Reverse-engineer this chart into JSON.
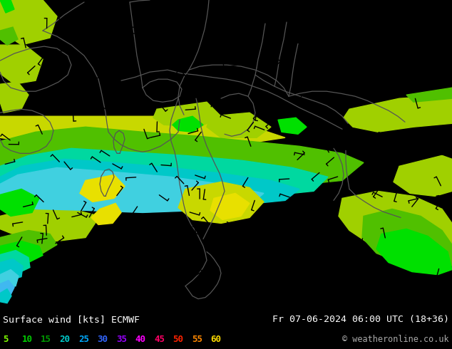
{
  "title_left": "Surface wind [kts] ECMWF",
  "title_right": "Fr 07-06-2024 06:00 UTC (18+36)",
  "copyright": "© weatheronline.co.uk",
  "legend_values": [
    5,
    10,
    15,
    20,
    25,
    30,
    35,
    40,
    45,
    50,
    55,
    60
  ],
  "legend_colors_actual": [
    "#80ff00",
    "#00dd00",
    "#00bb00",
    "#00dddd",
    "#00aaff",
    "#0066ff",
    "#cc00ff",
    "#ff00ff",
    "#ff0088",
    "#ff2200",
    "#ff6600",
    "#ffcc00"
  ],
  "map_colors": {
    "yellow": "#e8e000",
    "yellow_green": "#c8d800",
    "light_green": "#a0d000",
    "green": "#50c000",
    "bright_green": "#00e000",
    "dark_green": "#00aa00",
    "cyan_green": "#00d8a0",
    "cyan": "#00c8c8",
    "light_cyan": "#40d0e0",
    "sky_blue": "#40b8f0"
  },
  "figsize": [
    6.34,
    4.9
  ],
  "dpi": 100
}
